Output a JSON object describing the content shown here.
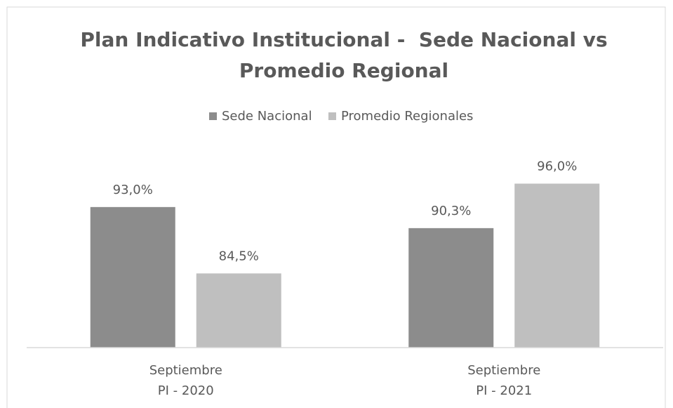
{
  "chart_data": {
    "type": "bar",
    "title": [
      "Plan Indicativo Institucional -  Sede Nacional vs",
      "Promedio Regional"
    ],
    "categories": [
      [
        "Septiembre",
        "PI - 2020"
      ],
      [
        "Septiembre",
        "PI - 2021"
      ]
    ],
    "series": [
      {
        "name": "Sede Nacional",
        "color": "#8c8c8c",
        "values": [
          93.0,
          90.3
        ],
        "value_labels": [
          "93,0%",
          "90,3%"
        ]
      },
      {
        "name": "Promedio Regionales",
        "color": "#bfbfbf",
        "values": [
          84.5,
          96.0
        ],
        "value_labels": [
          "84,5%",
          "96,0%"
        ]
      }
    ],
    "ylim": [
      75,
      100
    ],
    "legend": "top"
  }
}
